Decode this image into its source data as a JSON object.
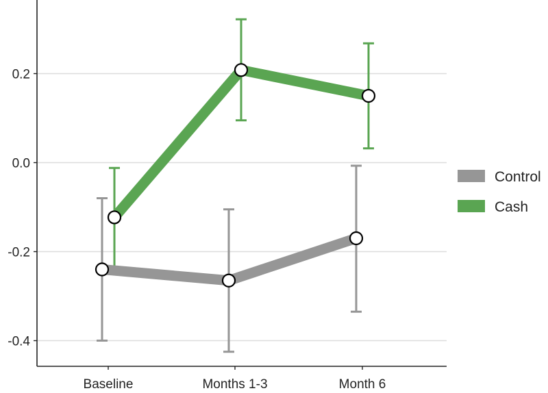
{
  "chart_data": {
    "type": "line",
    "title": "",
    "xlabel": "",
    "ylabel": "",
    "categories": [
      "Baseline",
      "Months 1-3",
      "Month 6"
    ],
    "ylim": [
      -0.45,
      0.35
    ],
    "yticks": [
      -0.4,
      -0.2,
      0.0,
      0.2
    ],
    "ytick_labels": [
      "-0.4",
      "-0.2",
      "0.0",
      "0.2"
    ],
    "grid": "horizontal",
    "legend_position": "right",
    "series": [
      {
        "name": "Control",
        "color": "#969696",
        "values": [
          -0.24,
          -0.265,
          -0.17
        ],
        "error_low": [
          -0.4,
          -0.425,
          -0.335
        ],
        "error_high": [
          -0.08,
          -0.105,
          -0.007
        ]
      },
      {
        "name": "Cash",
        "color": "#5aa552",
        "values": [
          -0.123,
          0.208,
          0.15
        ],
        "error_low": [
          -0.235,
          0.095,
          0.032
        ],
        "error_high": [
          -0.012,
          0.322,
          0.268
        ]
      }
    ]
  }
}
